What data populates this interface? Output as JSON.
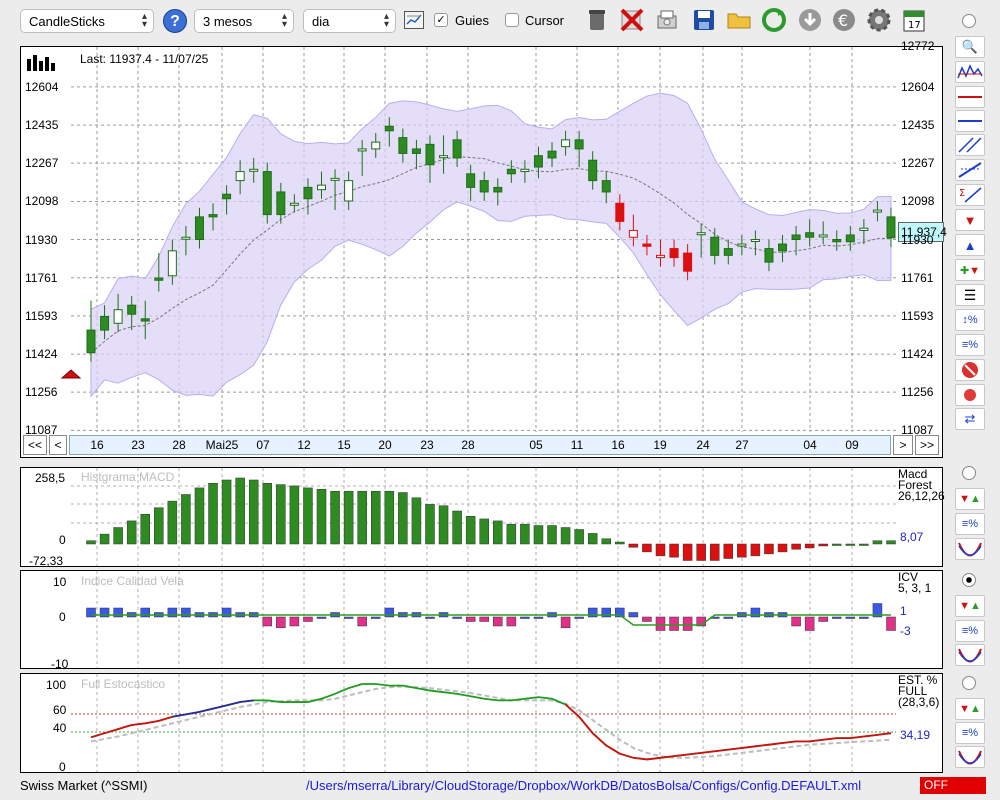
{
  "toolbar": {
    "chart_type": "CandleSticks",
    "period": "3 mesos",
    "interval": "dia",
    "guides_label": "Guies",
    "guides_checked": true,
    "cursor_label": "Cursor",
    "cursor_checked": false,
    "help_glyph": "?",
    "icons": [
      "trash-icon",
      "delete-icon",
      "print-icon",
      "save-icon",
      "open-folder-icon",
      "refresh-icon",
      "download-icon",
      "currency-icon",
      "settings-icon",
      "calendar-icon"
    ],
    "calendar_day": "17"
  },
  "main_chart": {
    "last_label": "Last: 11937.4 - 11/07/25",
    "current_price": "11.937,4",
    "y_ticks": [
      "12604",
      "12435",
      "12267",
      "12098",
      "11930",
      "11761",
      "11593",
      "11424",
      "11256",
      "11087"
    ],
    "y_top_partial": "12772",
    "x_labels": [
      "16",
      "23",
      "28",
      "Mai25",
      "07",
      "12",
      "15",
      "20",
      "23",
      "28",
      "05",
      "11",
      "16",
      "19",
      "24",
      "27",
      "04",
      "09"
    ],
    "nav_left": [
      "<<",
      "<"
    ],
    "nav_right": [
      ">",
      ">>"
    ],
    "candles": [
      [
        11530,
        11620,
        11520,
        11430
      ],
      [
        11590,
        11600,
        11560,
        11530
      ],
      [
        11560,
        11650,
        11580,
        11620
      ],
      [
        11640,
        11640,
        11570,
        11600
      ],
      [
        11580,
        11620,
        11530,
        11570
      ],
      [
        11760,
        11830,
        11740,
        11750
      ],
      [
        11770,
        11890,
        11780,
        11880
      ],
      [
        11940,
        11950,
        11900,
        11940
      ],
      [
        12030,
        11990,
        11960,
        11930
      ],
      [
        12040,
        12050,
        12010,
        12030
      ],
      [
        12130,
        12080,
        12090,
        12110
      ],
      [
        12190,
        12170,
        12240,
        12230
      ],
      [
        12240,
        12220,
        12250,
        12240
      ],
      [
        12230,
        12150,
        12100,
        12040
      ],
      [
        12140,
        12040,
        12050,
        12040
      ],
      [
        12090,
        12090,
        12090,
        12090
      ],
      [
        12160,
        12080,
        12120,
        12110
      ],
      [
        12150,
        12190,
        12180,
        12170
      ],
      [
        12200,
        12100,
        12150,
        12200
      ],
      [
        12100,
        12100,
        12170,
        12190
      ],
      [
        12330,
        12250,
        12300,
        12330
      ],
      [
        12330,
        12340,
        12350,
        12360
      ],
      [
        12430,
        12420,
        12380,
        12410
      ],
      [
        12380,
        12310,
        12340,
        12310
      ],
      [
        12330,
        12300,
        12280,
        12310
      ],
      [
        12350,
        12290,
        12220,
        12260
      ],
      [
        12300,
        12260,
        12350,
        12300
      ],
      [
        12370,
        12290,
        12290,
        12290
      ],
      [
        12220,
        12180,
        12140,
        12160
      ],
      [
        12190,
        12150,
        12170,
        12140
      ],
      [
        12160,
        12120,
        12160,
        12140
      ],
      [
        12240,
        12220,
        12240,
        12220
      ],
      [
        12230,
        12220,
        12230,
        12240
      ],
      [
        12300,
        12300,
        12240,
        12250
      ],
      [
        12320,
        12320,
        12310,
        12290
      ],
      [
        12340,
        12360,
        12360,
        12370
      ],
      [
        12370,
        12370,
        12290,
        12330
      ],
      [
        12280,
        12230,
        12210,
        12190
      ],
      [
        12190,
        12130,
        12140,
        12140
      ],
      [
        12090,
        12070,
        12050,
        12010
      ],
      [
        11940,
        12000,
        11980,
        11970
      ],
      [
        11910,
        11900,
        11900,
        11900
      ],
      [
        11850,
        11890,
        11860,
        11860
      ],
      [
        11890,
        11880,
        11880,
        11850
      ],
      [
        11870,
        11810,
        11800,
        11790
      ],
      [
        11960,
        11890,
        11930,
        11960
      ],
      [
        11940,
        11860,
        11860,
        11860
      ],
      [
        11890,
        11860,
        11860,
        11860
      ],
      [
        11910,
        11900,
        11910,
        11910
      ],
      [
        11930,
        11900,
        11900,
        11930
      ],
      [
        11890,
        11890,
        11840,
        11830
      ],
      [
        11910,
        11870,
        11910,
        11880
      ],
      [
        11950,
        11900,
        11910,
        11930
      ],
      [
        11960,
        11940,
        11980,
        11940
      ],
      [
        11950,
        11960,
        11970,
        11950
      ],
      [
        11930,
        11920,
        11930,
        11920
      ],
      [
        11950,
        11930,
        11950,
        11920
      ],
      [
        11970,
        11950,
        11960,
        11980
      ],
      [
        12060,
        12050,
        12060,
        12060
      ],
      [
        12030,
        12020,
        12000,
        11937
      ]
    ]
  },
  "macd": {
    "title": "Histgrama MACD",
    "y_ticks": [
      "258,5",
      "0",
      "-72,33"
    ],
    "legend": [
      "Macd",
      "Forest",
      "26,12,26"
    ],
    "value": "8,07"
  },
  "icv": {
    "title": "Indice Calidad Vela",
    "y_ticks": [
      "10",
      "0",
      "-10"
    ],
    "legend": [
      "ICV",
      "5, 3, 1"
    ],
    "value_pos": "1",
    "value_neg": "-3"
  },
  "stoch": {
    "title": "Full Estocastico",
    "y_ticks": [
      "100",
      "60",
      "40",
      "0"
    ],
    "legend": [
      "EST. %",
      "FULL",
      "(28,3,6)"
    ],
    "value": "34,19"
  },
  "status": {
    "instrument": "Swiss Market (^SSMI)",
    "path": "/Users/mserra/Library/CloudStorage/Dropbox/WorkDB/DatosBolsa/Configs/Config.DEFAULT.xml",
    "off_label": "OFF"
  },
  "colors": {
    "bull": "#2e8b22",
    "bear": "#dd1010",
    "band": "#d8d0f6",
    "path": "#1a1adc"
  }
}
